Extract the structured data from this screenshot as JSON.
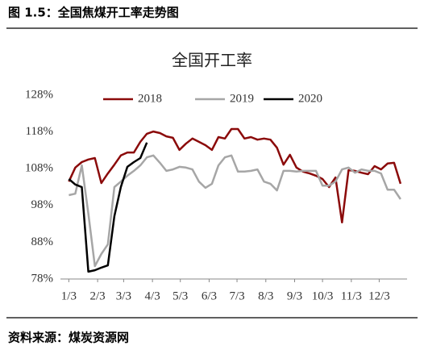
{
  "caption": "图 1.5：全国焦煤开工率走势图",
  "source": "资料来源：煤炭资源网",
  "chart_data": {
    "type": "line",
    "title": "全国开工率",
    "x": [
      3,
      10,
      17,
      24,
      31,
      38,
      45,
      52,
      59,
      66,
      73,
      80,
      87,
      94,
      101,
      108,
      115,
      122,
      129,
      136,
      143,
      150,
      157,
      164,
      171,
      178,
      185,
      192,
      199,
      206,
      213,
      220,
      227,
      234,
      241,
      248,
      255,
      262,
      269,
      276,
      283,
      290,
      297,
      304,
      311,
      318,
      325,
      332,
      339,
      346,
      353,
      360
    ],
    "xlim": [
      -6,
      367
    ],
    "xticks": [
      {
        "value": 3,
        "label": "1/3"
      },
      {
        "value": 34,
        "label": "2/3"
      },
      {
        "value": 62,
        "label": "3/3"
      },
      {
        "value": 93,
        "label": "4/3"
      },
      {
        "value": 123,
        "label": "5/3"
      },
      {
        "value": 154,
        "label": "6/3"
      },
      {
        "value": 184,
        "label": "7/3"
      },
      {
        "value": 215,
        "label": "8/3"
      },
      {
        "value": 246,
        "label": "9/3"
      },
      {
        "value": 276,
        "label": "10/3"
      },
      {
        "value": 307,
        "label": "11/3"
      },
      {
        "value": 337,
        "label": "12/3"
      }
    ],
    "ylim": [
      78,
      128
    ],
    "yticks": [
      {
        "value": 78,
        "label": "78%"
      },
      {
        "value": 88,
        "label": "88%"
      },
      {
        "value": 98,
        "label": "98%"
      },
      {
        "value": 108,
        "label": "108%"
      },
      {
        "value": 118,
        "label": "118%"
      },
      {
        "value": 128,
        "label": "128%"
      }
    ],
    "legend": "top",
    "series": [
      {
        "name": "2018",
        "color": "#8b0a0a",
        "values": [
          104.5,
          108.3,
          109.8,
          110.5,
          110.9,
          104.1,
          106.7,
          109.1,
          111.6,
          112.4,
          112.4,
          115.3,
          117.5,
          118.1,
          117.7,
          116.8,
          116.4,
          113.1,
          114.8,
          116.2,
          115.3,
          114.4,
          113.1,
          116.6,
          116.2,
          118.8,
          118.8,
          116.2,
          116.6,
          115.9,
          116.2,
          115.9,
          113.7,
          109.1,
          111.8,
          108.3,
          107.2,
          106.7,
          106.1,
          105.2,
          103.0,
          105.6,
          93.4,
          107.6,
          107.4,
          106.9,
          106.5,
          108.7,
          107.8,
          109.4,
          109.6,
          103.9
        ]
      },
      {
        "name": "2019",
        "color": "#a6a6a6",
        "values": [
          100.8,
          101.2,
          108.9,
          95.8,
          81.5,
          84.8,
          87.4,
          103.0,
          104.5,
          106.1,
          107.4,
          108.9,
          111.1,
          111.6,
          109.6,
          107.4,
          107.8,
          108.5,
          108.3,
          107.8,
          104.5,
          102.8,
          103.9,
          108.9,
          111.1,
          111.6,
          107.2,
          107.2,
          107.4,
          107.8,
          104.5,
          103.9,
          102.1,
          107.4,
          107.4,
          107.2,
          107.4,
          107.4,
          107.4,
          103.4,
          103.4,
          104.5,
          107.8,
          108.3,
          106.9,
          107.8,
          107.4,
          107.4,
          106.7,
          102.3,
          102.3,
          99.7
        ]
      },
      {
        "name": "2020",
        "color": "#000000",
        "values": [
          105.2,
          103.7,
          103.0,
          80.0,
          80.4,
          81.1,
          81.7,
          95.1,
          103.0,
          108.5,
          109.8,
          110.9,
          115.1,
          null,
          null,
          null,
          null,
          null,
          null,
          null,
          null,
          null,
          null,
          null,
          null,
          null,
          null,
          null,
          null,
          null,
          null,
          null,
          null,
          null,
          null,
          null,
          null,
          null,
          null,
          null,
          null,
          null,
          null,
          null,
          null,
          null,
          null,
          null,
          null,
          null,
          null,
          null
        ]
      }
    ]
  }
}
